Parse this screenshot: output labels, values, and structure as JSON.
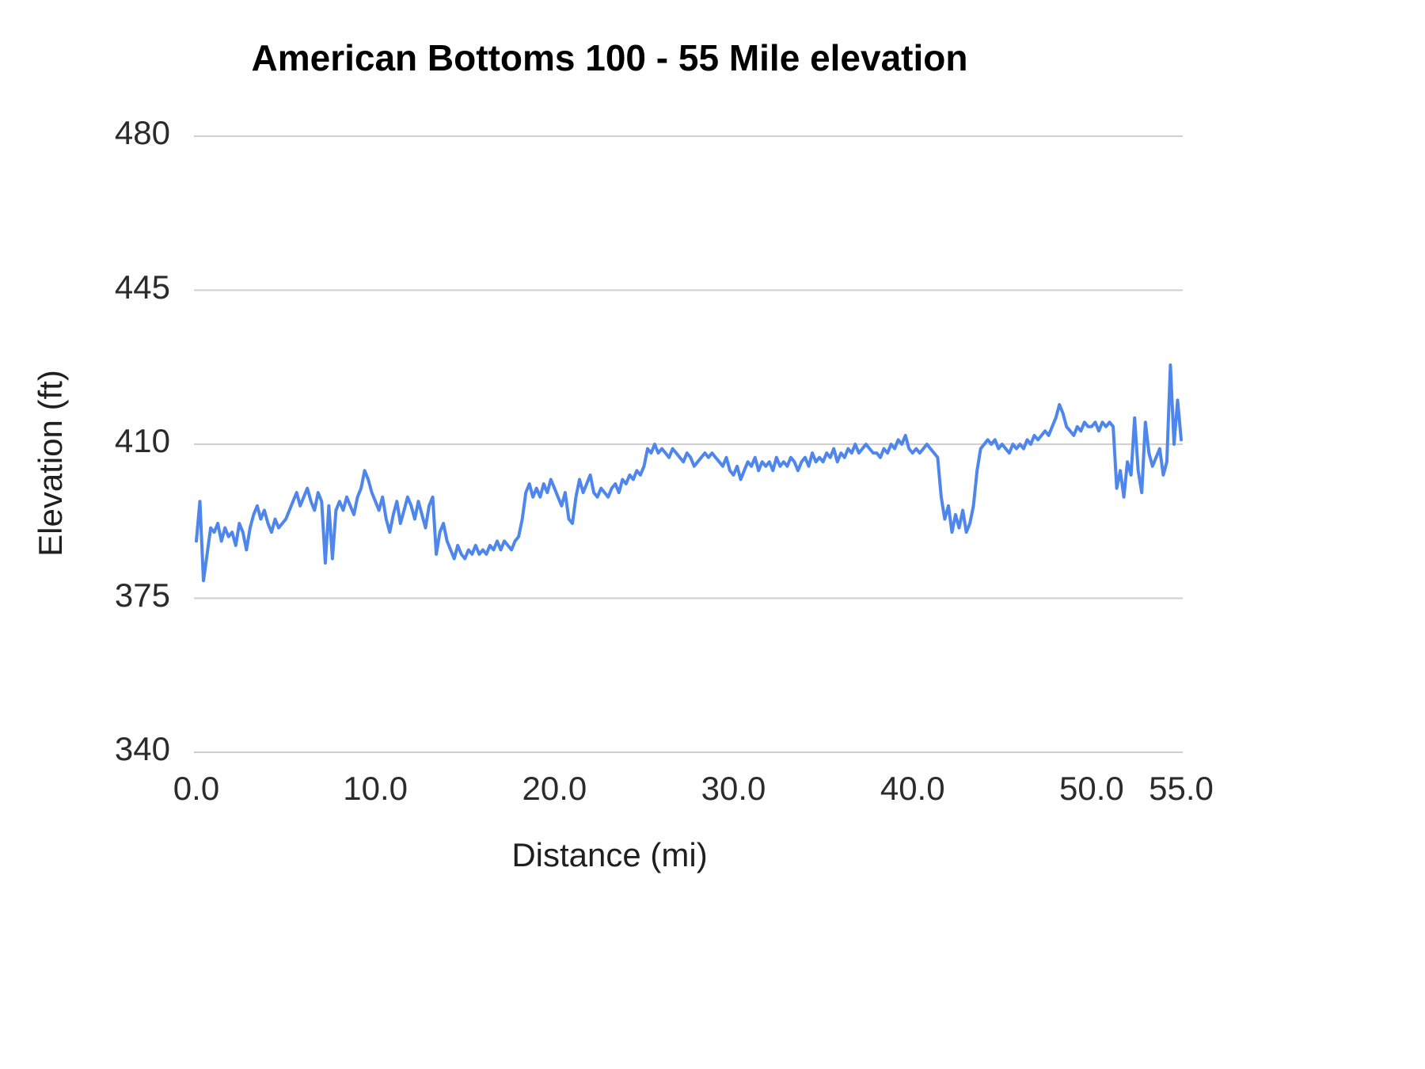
{
  "page": {
    "title": "American Bottoms 100 - 55 Mile elevation"
  },
  "chart_data": {
    "type": "line",
    "title": "American Bottoms 100 - 55 Mile elevation",
    "xlabel": "Distance (mi)",
    "ylabel": "Elevation (ft)",
    "xlim": [
      0,
      55
    ],
    "ylim": [
      340,
      480
    ],
    "grid": true,
    "legend_position": "none",
    "x_ticks": {
      "values": [
        0,
        10,
        20,
        30,
        40,
        50,
        55
      ],
      "labels": [
        "0.0",
        "10.0",
        "20.0",
        "30.0",
        "40.0",
        "50.0",
        "55.0"
      ]
    },
    "y_ticks": {
      "values": [
        340,
        375,
        410,
        445,
        480
      ],
      "labels": [
        "340",
        "375",
        "410",
        "445",
        "480"
      ]
    },
    "line_color": "#4f86ec",
    "gridline_color": "#cfcfcf",
    "series": [
      {
        "name": "Elevation (ft)",
        "x_start": 0,
        "x_step": 0.2,
        "y": [
          388,
          397,
          379,
          385,
          391,
          390,
          392,
          388,
          391,
          389,
          390,
          387,
          392,
          390,
          386,
          391,
          394,
          396,
          393,
          395,
          392,
          390,
          393,
          391,
          392,
          393,
          395,
          397,
          399,
          396,
          398,
          400,
          397,
          395,
          399,
          397,
          383,
          396,
          384,
          395,
          397,
          395,
          398,
          396,
          394,
          398,
          400,
          404,
          402,
          399,
          397,
          395,
          398,
          393,
          390,
          394,
          397,
          392,
          395,
          398,
          396,
          393,
          397,
          394,
          391,
          396,
          398,
          385,
          390,
          392,
          388,
          386,
          384,
          387,
          385,
          384,
          386,
          385,
          387,
          385,
          386,
          385,
          387,
          386,
          388,
          386,
          388,
          387,
          386,
          388,
          389,
          393,
          399,
          401,
          398,
          400,
          398,
          401,
          399,
          402,
          400,
          398,
          396,
          399,
          393,
          392,
          398,
          402,
          399,
          401,
          403,
          399,
          398,
          400,
          399,
          398,
          400,
          401,
          399,
          402,
          401,
          403,
          402,
          404,
          403,
          405,
          409,
          408,
          410,
          408,
          409,
          408,
          407,
          409,
          408,
          407,
          406,
          408,
          407,
          405,
          406,
          407,
          408,
          407,
          408,
          407,
          406,
          405,
          407,
          404,
          403,
          405,
          402,
          404,
          406,
          405,
          407,
          404,
          406,
          405,
          406,
          404,
          407,
          405,
          406,
          405,
          407,
          406,
          404,
          406,
          407,
          405,
          408,
          406,
          407,
          406,
          408,
          407,
          409,
          406,
          408,
          407,
          409,
          408,
          410,
          408,
          409,
          410,
          409,
          408,
          408,
          407,
          409,
          408,
          410,
          409,
          411,
          410,
          412,
          409,
          408,
          409,
          408,
          409,
          410,
          409,
          408,
          407,
          398,
          393,
          396,
          390,
          394,
          391,
          395,
          390,
          392,
          396,
          404,
          409,
          410,
          411,
          410,
          411,
          409,
          410,
          409,
          408,
          410,
          409,
          410,
          409,
          411,
          410,
          412,
          411,
          412,
          413,
          412,
          414,
          416,
          419,
          417,
          414,
          413,
          412,
          414,
          413,
          415,
          414,
          414,
          415,
          413,
          415,
          414,
          415,
          414,
          400,
          404,
          398,
          406,
          403,
          416,
          404,
          399,
          415,
          408,
          405,
          407,
          409,
          403,
          406,
          428,
          410,
          420,
          411
        ]
      }
    ]
  }
}
